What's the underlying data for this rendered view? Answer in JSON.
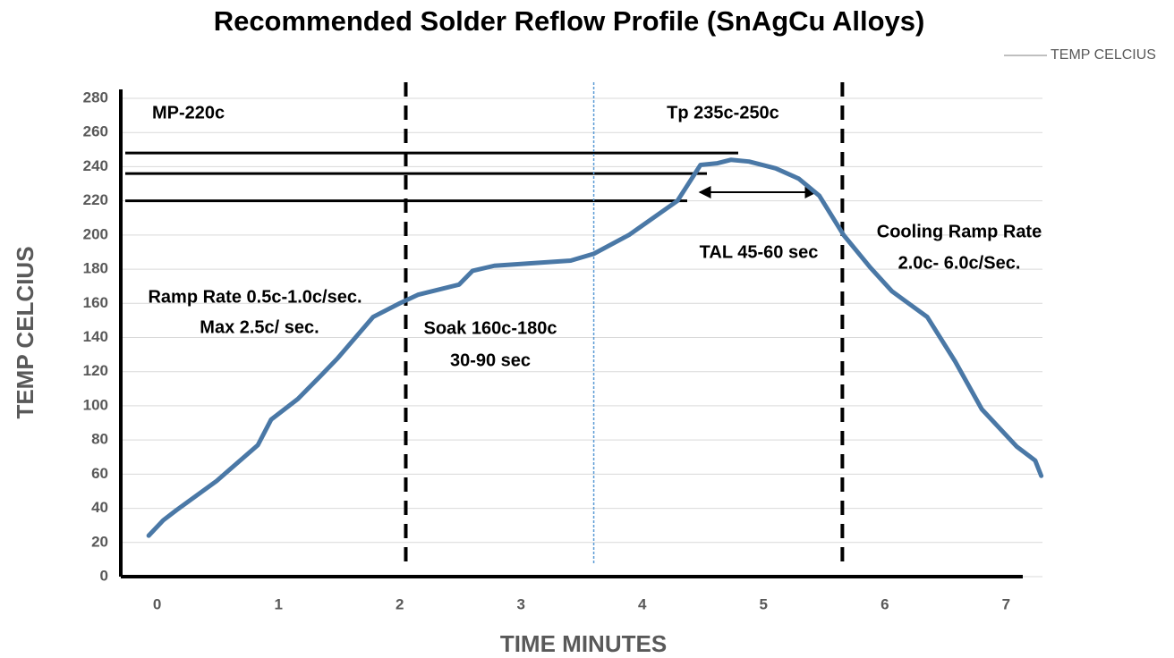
{
  "chart_data": {
    "type": "line",
    "title": "Recommended Solder Reflow Profile (SnAgCu Alloys)",
    "x_label": "TIME MINUTES",
    "y_label": "TEMP CELCIUS",
    "xlim": [
      -0.3,
      7.3
    ],
    "xticks": [
      0,
      1,
      2,
      3,
      4,
      5,
      6,
      7
    ],
    "ylim": [
      0,
      280
    ],
    "yticks": [
      0,
      20,
      40,
      60,
      80,
      100,
      120,
      140,
      160,
      180,
      200,
      220,
      240,
      260,
      280
    ],
    "grid": true,
    "legend": "top-right",
    "x": [
      -0.07,
      0.05,
      0.16,
      0.49,
      0.83,
      0.94,
      1.16,
      1.34,
      1.49,
      1.78,
      2.0,
      2.15,
      2.49,
      2.6,
      2.78,
      3.41,
      3.6,
      3.89,
      4.29,
      4.48,
      4.62,
      4.73,
      4.88,
      5.1,
      5.29,
      5.46,
      5.66,
      5.88,
      6.06,
      6.35,
      6.58,
      6.8,
      7.09,
      7.24,
      7.29
    ],
    "series": [
      {
        "name": "TEMP CELCIUS",
        "color": "#4a78a6",
        "values": [
          24,
          33,
          39,
          56,
          77,
          92,
          104,
          117,
          128,
          152,
          160,
          165,
          171,
          179,
          182,
          185,
          189,
          200,
          220,
          241,
          242,
          244,
          243,
          239,
          233,
          223,
          200,
          181,
          167,
          152,
          126,
          98,
          76,
          68,
          59
        ]
      }
    ],
    "reference_lines": [
      248,
      236,
      220
    ],
    "phase_lines": [
      2.05,
      3.6,
      5.65
    ],
    "annotations": [
      "MP-220c",
      "Tp 235c-250c",
      "Ramp Rate 0.5c-1.0c/sec.",
      "Max  2.5c/ sec.",
      "Soak 160c-180c",
      "30-90 sec",
      "TAL 45-60 sec",
      "Cooling Ramp Rate",
      "2.0c- 6.0c/Sec."
    ]
  }
}
